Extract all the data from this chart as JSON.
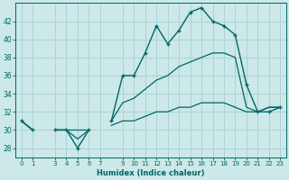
{
  "xlabel": "Humidex (Indice chaleur)",
  "bg_color": "#cce8e8",
  "grid_color": "#aad4d4",
  "line_color": "#006666",
  "xticks": [
    0,
    1,
    3,
    4,
    5,
    6,
    7,
    9,
    10,
    11,
    12,
    13,
    14,
    15,
    16,
    17,
    18,
    19,
    20,
    21,
    22,
    23
  ],
  "yticks": [
    28,
    30,
    32,
    34,
    36,
    38,
    40,
    42
  ],
  "ylim": [
    27.0,
    44.0
  ],
  "xlim": [
    -0.5,
    23.5
  ],
  "humidex": [
    31,
    30,
    null,
    30,
    30,
    28,
    30,
    null,
    31,
    36,
    36,
    38.5,
    41.5,
    39.5,
    41,
    43,
    43.5,
    42,
    41.5,
    40.5,
    35,
    32,
    32,
    32.5
  ],
  "low_line": [
    31,
    30,
    null,
    30,
    30,
    30,
    30,
    null,
    30.5,
    31,
    31,
    31.5,
    32,
    32,
    32.5,
    32.5,
    33,
    33,
    33,
    32.5,
    32,
    32,
    32.5,
    32.5
  ],
  "high_line": [
    31,
    30,
    null,
    30,
    30,
    29,
    30,
    null,
    31,
    33,
    33.5,
    34.5,
    35.5,
    36,
    37,
    37.5,
    38,
    38.5,
    38.5,
    38,
    32.5,
    32,
    32.5,
    32.5
  ]
}
